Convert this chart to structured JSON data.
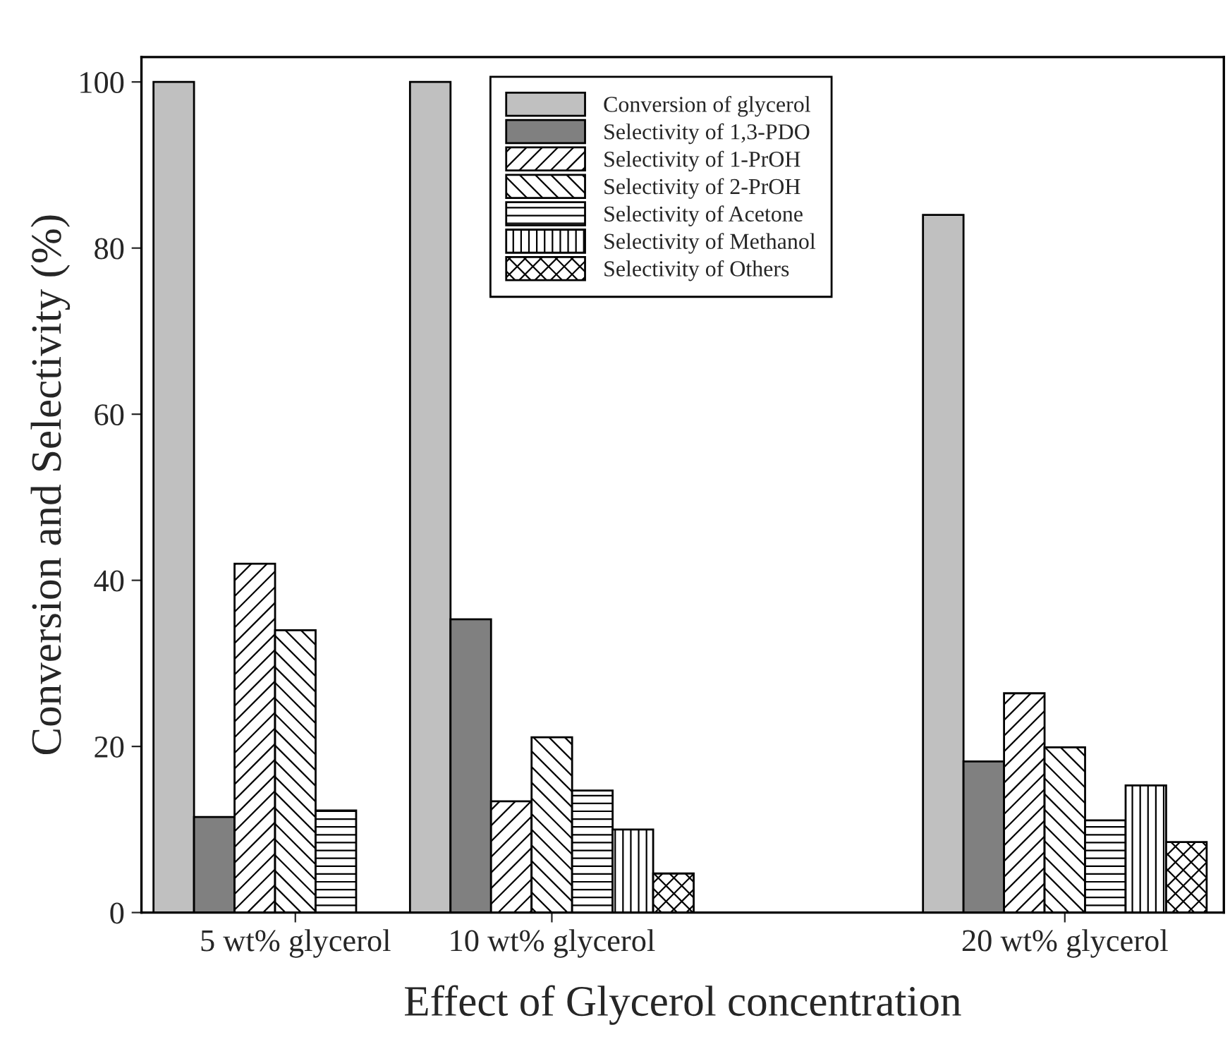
{
  "chart_data": {
    "type": "bar",
    "xlabel": "Effect of Glycerol concentration",
    "ylabel": "Conversion and Selectivity (%)",
    "categories": [
      "5 wt% glycerol",
      "10 wt% glycerol",
      null,
      "20 wt% glycerol"
    ],
    "series": [
      {
        "name": "Conversion of glycerol",
        "color": "#c0c0c0",
        "values": [
          100,
          100,
          null,
          84
        ]
      },
      {
        "name": "Selectivity of 1,3-PDO",
        "color": "#808080",
        "values": [
          11.5,
          35.3,
          null,
          18.2
        ]
      },
      {
        "name": "Selectivity of 1-PrOH",
        "color": "#000000",
        "values": [
          42,
          13.4,
          null,
          26.4
        ]
      },
      {
        "name": "Selectivity of 2-PrOH",
        "color": "#000000",
        "values": [
          34,
          21.1,
          null,
          19.9
        ]
      },
      {
        "name": "Selectivity of Acetone",
        "color": "#000000",
        "values": [
          12.3,
          14.7,
          null,
          11.1
        ]
      },
      {
        "name": "Selectivity of Methanol",
        "color": "#000000",
        "values": [
          null,
          10,
          null,
          15.3
        ]
      },
      {
        "name": "Selectivity of Others",
        "color": "#000000",
        "values": [
          null,
          4.7,
          null,
          8.5
        ]
      }
    ],
    "ylim": [
      0,
      103
    ],
    "yticks": [
      0,
      20,
      40,
      60,
      80,
      100
    ],
    "grid": false,
    "legend": "top"
  }
}
